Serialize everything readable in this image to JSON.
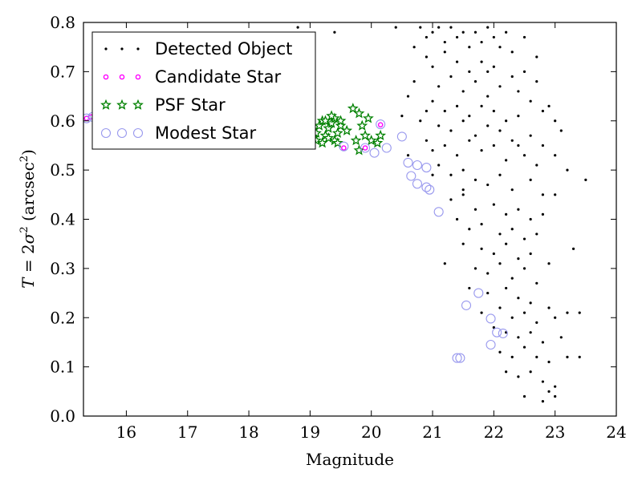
{
  "chart_data": {
    "type": "scatter",
    "xlabel": "Magnitude",
    "ylabel_parts": {
      "var": "T",
      "eq": " = 2",
      "sigma": "σ",
      "exp": "2",
      "unit": " (arcsec",
      "unit_exp": "2",
      "close": ")"
    },
    "xlim": [
      15.3,
      24.0
    ],
    "ylim": [
      0.0,
      0.8
    ],
    "x_ticks": [
      "16",
      "17",
      "18",
      "19",
      "20",
      "21",
      "22",
      "23",
      "24"
    ],
    "y_ticks": [
      "0.0",
      "0.1",
      "0.2",
      "0.3",
      "0.4",
      "0.5",
      "0.6",
      "0.7",
      "0.8"
    ],
    "legend_position": "top-left",
    "grid": false,
    "colors": {
      "detected": "#000000",
      "candidate": "#ff00ff",
      "psf": "#008000",
      "modest": "#9999ee"
    },
    "series": [
      {
        "name": "Detected Object",
        "marker": "dot",
        "points": [
          [
            20.8,
            0.79
          ],
          [
            20.9,
            0.77
          ],
          [
            21.0,
            0.78
          ],
          [
            21.1,
            0.79
          ],
          [
            21.2,
            0.76
          ],
          [
            21.3,
            0.79
          ],
          [
            21.4,
            0.77
          ],
          [
            21.5,
            0.78
          ],
          [
            21.6,
            0.75
          ],
          [
            21.7,
            0.78
          ],
          [
            21.8,
            0.76
          ],
          [
            21.9,
            0.79
          ],
          [
            22.0,
            0.77
          ],
          [
            22.1,
            0.75
          ],
          [
            22.2,
            0.78
          ],
          [
            22.3,
            0.74
          ],
          [
            22.5,
            0.77
          ],
          [
            22.7,
            0.73
          ],
          [
            21.2,
            0.74
          ],
          [
            20.9,
            0.73
          ],
          [
            21.0,
            0.71
          ],
          [
            21.4,
            0.72
          ],
          [
            21.6,
            0.7
          ],
          [
            21.8,
            0.72
          ],
          [
            22.0,
            0.71
          ],
          [
            22.3,
            0.69
          ],
          [
            22.5,
            0.7
          ],
          [
            22.7,
            0.68
          ],
          [
            20.7,
            0.68
          ],
          [
            21.1,
            0.67
          ],
          [
            21.3,
            0.69
          ],
          [
            21.5,
            0.66
          ],
          [
            21.7,
            0.68
          ],
          [
            21.9,
            0.65
          ],
          [
            22.1,
            0.67
          ],
          [
            22.4,
            0.66
          ],
          [
            22.6,
            0.64
          ],
          [
            22.9,
            0.63
          ],
          [
            20.6,
            0.65
          ],
          [
            21.0,
            0.64
          ],
          [
            21.2,
            0.62
          ],
          [
            21.4,
            0.63
          ],
          [
            21.6,
            0.61
          ],
          [
            21.8,
            0.63
          ],
          [
            22.0,
            0.62
          ],
          [
            22.2,
            0.6
          ],
          [
            22.4,
            0.61
          ],
          [
            22.8,
            0.62
          ],
          [
            23.0,
            0.6
          ],
          [
            20.5,
            0.61
          ],
          [
            20.8,
            0.6
          ],
          [
            21.1,
            0.59
          ],
          [
            21.3,
            0.58
          ],
          [
            21.5,
            0.6
          ],
          [
            21.7,
            0.57
          ],
          [
            21.9,
            0.59
          ],
          [
            22.1,
            0.58
          ],
          [
            22.3,
            0.56
          ],
          [
            22.6,
            0.57
          ],
          [
            22.8,
            0.55
          ],
          [
            23.1,
            0.58
          ],
          [
            20.9,
            0.56
          ],
          [
            21.0,
            0.54
          ],
          [
            21.2,
            0.55
          ],
          [
            21.4,
            0.53
          ],
          [
            21.6,
            0.56
          ],
          [
            21.8,
            0.54
          ],
          [
            22.0,
            0.55
          ],
          [
            22.2,
            0.52
          ],
          [
            22.5,
            0.53
          ],
          [
            22.7,
            0.51
          ],
          [
            23.0,
            0.53
          ],
          [
            23.2,
            0.5
          ],
          [
            21.1,
            0.51
          ],
          [
            21.3,
            0.49
          ],
          [
            21.5,
            0.5
          ],
          [
            21.7,
            0.48
          ],
          [
            21.9,
            0.47
          ],
          [
            22.1,
            0.49
          ],
          [
            22.3,
            0.46
          ],
          [
            22.6,
            0.48
          ],
          [
            22.8,
            0.45
          ],
          [
            23.5,
            0.48
          ],
          [
            21.3,
            0.44
          ],
          [
            21.5,
            0.45
          ],
          [
            21.7,
            0.42
          ],
          [
            22.0,
            0.43
          ],
          [
            22.2,
            0.41
          ],
          [
            22.4,
            0.42
          ],
          [
            22.6,
            0.4
          ],
          [
            22.8,
            0.41
          ],
          [
            21.4,
            0.4
          ],
          [
            21.6,
            0.38
          ],
          [
            21.8,
            0.39
          ],
          [
            22.1,
            0.37
          ],
          [
            22.3,
            0.38
          ],
          [
            22.5,
            0.36
          ],
          [
            22.7,
            0.37
          ],
          [
            21.5,
            0.35
          ],
          [
            21.8,
            0.34
          ],
          [
            22.0,
            0.33
          ],
          [
            22.2,
            0.35
          ],
          [
            22.4,
            0.32
          ],
          [
            22.6,
            0.33
          ],
          [
            22.9,
            0.31
          ],
          [
            21.7,
            0.3
          ],
          [
            21.9,
            0.29
          ],
          [
            22.1,
            0.31
          ],
          [
            22.3,
            0.28
          ],
          [
            22.5,
            0.3
          ],
          [
            22.7,
            0.27
          ],
          [
            23.3,
            0.34
          ],
          [
            21.6,
            0.26
          ],
          [
            21.9,
            0.25
          ],
          [
            22.2,
            0.26
          ],
          [
            22.4,
            0.24
          ],
          [
            22.6,
            0.23
          ],
          [
            22.9,
            0.22
          ],
          [
            21.8,
            0.21
          ],
          [
            22.1,
            0.22
          ],
          [
            22.3,
            0.2
          ],
          [
            22.5,
            0.21
          ],
          [
            22.7,
            0.19
          ],
          [
            23.0,
            0.2
          ],
          [
            23.2,
            0.21
          ],
          [
            23.4,
            0.21
          ],
          [
            22.0,
            0.18
          ],
          [
            22.2,
            0.17
          ],
          [
            22.4,
            0.16
          ],
          [
            22.6,
            0.17
          ],
          [
            22.8,
            0.15
          ],
          [
            23.1,
            0.16
          ],
          [
            22.1,
            0.13
          ],
          [
            22.3,
            0.12
          ],
          [
            22.5,
            0.14
          ],
          [
            22.7,
            0.12
          ],
          [
            22.9,
            0.11
          ],
          [
            23.2,
            0.12
          ],
          [
            23.4,
            0.12
          ],
          [
            22.2,
            0.09
          ],
          [
            22.4,
            0.08
          ],
          [
            22.6,
            0.09
          ],
          [
            22.8,
            0.07
          ],
          [
            23.0,
            0.06
          ],
          [
            22.5,
            0.04
          ],
          [
            22.8,
            0.03
          ],
          [
            23.0,
            0.04
          ],
          [
            22.9,
            0.05
          ],
          [
            18.8,
            0.79
          ],
          [
            19.4,
            0.78
          ],
          [
            20.4,
            0.79
          ],
          [
            20.9,
            0.62
          ],
          [
            21.0,
            0.49
          ],
          [
            20.6,
            0.53
          ],
          [
            21.5,
            0.46
          ],
          [
            20.7,
            0.75
          ],
          [
            21.9,
            0.7
          ],
          [
            22.4,
            0.55
          ],
          [
            23.0,
            0.45
          ],
          [
            21.2,
            0.31
          ]
        ]
      },
      {
        "name": "Candidate Star",
        "marker": "ring",
        "points": [
          [
            15.35,
            0.605
          ],
          [
            15.42,
            0.608
          ],
          [
            19.55,
            0.545
          ],
          [
            19.9,
            0.545
          ],
          [
            20.15,
            0.592
          ]
        ]
      },
      {
        "name": "PSF Star",
        "marker": "star",
        "points": [
          [
            19.0,
            0.58
          ],
          [
            19.1,
            0.575
          ],
          [
            19.15,
            0.59
          ],
          [
            19.2,
            0.6
          ],
          [
            19.25,
            0.57
          ],
          [
            19.3,
            0.585
          ],
          [
            19.35,
            0.595
          ],
          [
            19.4,
            0.605
          ],
          [
            19.45,
            0.575
          ],
          [
            19.5,
            0.59
          ],
          [
            19.1,
            0.56
          ],
          [
            19.2,
            0.555
          ],
          [
            19.3,
            0.565
          ],
          [
            19.4,
            0.56
          ],
          [
            19.5,
            0.6
          ],
          [
            19.6,
            0.58
          ],
          [
            19.7,
            0.625
          ],
          [
            19.75,
            0.56
          ],
          [
            19.8,
            0.615
          ],
          [
            19.85,
            0.59
          ],
          [
            19.9,
            0.57
          ],
          [
            19.95,
            0.605
          ],
          [
            20.0,
            0.56
          ],
          [
            20.1,
            0.555
          ],
          [
            20.15,
            0.57
          ],
          [
            19.8,
            0.54
          ],
          [
            19.35,
            0.61
          ],
          [
            19.25,
            0.6
          ],
          [
            19.45,
            0.555
          ],
          [
            19.05,
            0.565
          ]
        ]
      },
      {
        "name": "Modest Star",
        "marker": "circle",
        "points": [
          [
            15.35,
            0.605
          ],
          [
            15.45,
            0.608
          ],
          [
            15.9,
            0.578
          ],
          [
            16.2,
            0.575
          ],
          [
            19.55,
            0.548
          ],
          [
            19.9,
            0.545
          ],
          [
            20.05,
            0.535
          ],
          [
            20.15,
            0.593
          ],
          [
            20.25,
            0.545
          ],
          [
            20.5,
            0.568
          ],
          [
            20.6,
            0.515
          ],
          [
            20.65,
            0.488
          ],
          [
            20.75,
            0.51
          ],
          [
            20.75,
            0.472
          ],
          [
            20.9,
            0.505
          ],
          [
            20.9,
            0.465
          ],
          [
            20.95,
            0.46
          ],
          [
            21.1,
            0.415
          ],
          [
            21.4,
            0.118
          ],
          [
            21.45,
            0.118
          ],
          [
            21.55,
            0.225
          ],
          [
            21.75,
            0.25
          ],
          [
            21.95,
            0.198
          ],
          [
            21.95,
            0.145
          ],
          [
            22.05,
            0.17
          ],
          [
            22.15,
            0.168
          ]
        ]
      }
    ]
  }
}
